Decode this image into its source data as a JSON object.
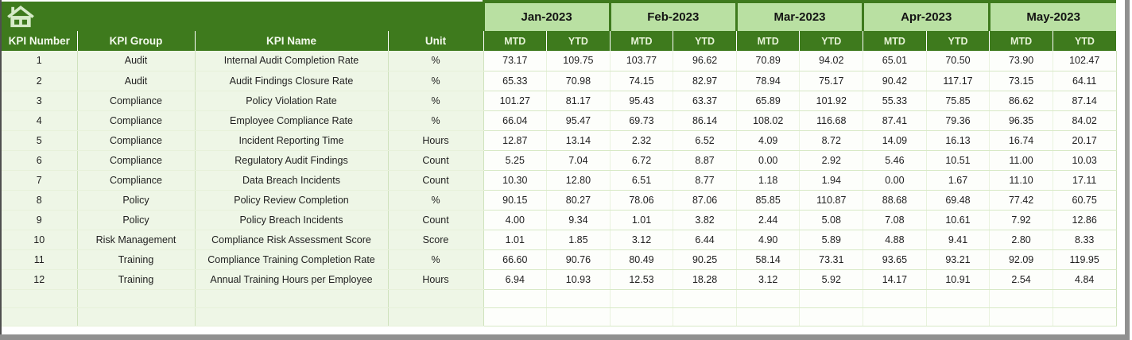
{
  "window": {
    "home_icon": "home-icon",
    "chrome_gray": "#909090",
    "edge_dark": "#4f4f4f"
  },
  "colors": {
    "header_green": "#3e7a1d",
    "month_band_green": "#b9e0a2",
    "left_cell_green": "#eef6e6",
    "grid_green": "#cfe2bd",
    "header_text": "#f4faee",
    "icon_fill": "#d6ebc8"
  },
  "table": {
    "column_headers": [
      "KPI Number",
      "KPI Group",
      "KPI Name",
      "Unit"
    ],
    "months": [
      "Jan-2023",
      "Feb-2023",
      "Mar-2023",
      "Apr-2023",
      "May-2023"
    ],
    "subheaders": {
      "mtd": "MTD",
      "ytd": "YTD"
    },
    "empty_row_count": 2,
    "rows": [
      {
        "number": "1",
        "group": "Audit",
        "name": "Internal Audit Completion Rate",
        "unit": "%",
        "values": [
          "73.17",
          "109.75",
          "103.77",
          "96.62",
          "70.89",
          "94.02",
          "65.01",
          "70.50",
          "73.90",
          "102.47"
        ]
      },
      {
        "number": "2",
        "group": "Audit",
        "name": "Audit Findings Closure Rate",
        "unit": "%",
        "values": [
          "65.33",
          "70.98",
          "74.15",
          "82.97",
          "78.94",
          "75.17",
          "90.42",
          "117.17",
          "73.15",
          "64.11"
        ]
      },
      {
        "number": "3",
        "group": "Compliance",
        "name": "Policy Violation Rate",
        "unit": "%",
        "values": [
          "101.27",
          "81.17",
          "95.43",
          "63.37",
          "65.89",
          "101.92",
          "55.33",
          "75.85",
          "86.62",
          "87.14"
        ]
      },
      {
        "number": "4",
        "group": "Compliance",
        "name": "Employee Compliance Rate",
        "unit": "%",
        "values": [
          "66.04",
          "95.47",
          "69.73",
          "86.14",
          "108.02",
          "116.68",
          "87.41",
          "79.36",
          "96.35",
          "84.02"
        ]
      },
      {
        "number": "5",
        "group": "Compliance",
        "name": "Incident Reporting Time",
        "unit": "Hours",
        "values": [
          "12.87",
          "13.14",
          "2.32",
          "6.52",
          "4.09",
          "8.72",
          "14.09",
          "16.13",
          "16.74",
          "20.17"
        ]
      },
      {
        "number": "6",
        "group": "Compliance",
        "name": "Regulatory Audit Findings",
        "unit": "Count",
        "values": [
          "5.25",
          "7.04",
          "6.72",
          "8.87",
          "0.00",
          "2.92",
          "5.46",
          "10.51",
          "11.00",
          "10.03"
        ]
      },
      {
        "number": "7",
        "group": "Compliance",
        "name": "Data Breach Incidents",
        "unit": "Count",
        "values": [
          "10.30",
          "12.80",
          "6.51",
          "8.77",
          "1.18",
          "1.94",
          "0.00",
          "1.67",
          "11.10",
          "17.11"
        ]
      },
      {
        "number": "8",
        "group": "Policy",
        "name": "Policy Review Completion",
        "unit": "%",
        "values": [
          "90.15",
          "80.27",
          "78.06",
          "87.06",
          "85.85",
          "110.87",
          "88.68",
          "69.48",
          "77.42",
          "60.75"
        ]
      },
      {
        "number": "9",
        "group": "Policy",
        "name": "Policy Breach Incidents",
        "unit": "Count",
        "values": [
          "4.00",
          "9.34",
          "1.01",
          "3.82",
          "2.44",
          "5.08",
          "7.08",
          "10.61",
          "7.92",
          "12.86"
        ]
      },
      {
        "number": "10",
        "group": "Risk Management",
        "name": "Compliance Risk Assessment Score",
        "unit": "Score",
        "values": [
          "1.01",
          "1.85",
          "3.12",
          "6.44",
          "4.90",
          "5.89",
          "4.88",
          "9.41",
          "2.80",
          "8.33"
        ]
      },
      {
        "number": "11",
        "group": "Training",
        "name": "Compliance Training Completion Rate",
        "unit": "%",
        "values": [
          "66.60",
          "90.76",
          "80.49",
          "90.25",
          "58.14",
          "73.31",
          "93.65",
          "93.21",
          "92.09",
          "119.95"
        ]
      },
      {
        "number": "12",
        "group": "Training",
        "name": "Annual Training Hours per Employee",
        "unit": "Hours",
        "values": [
          "6.94",
          "10.93",
          "12.53",
          "18.28",
          "3.12",
          "5.92",
          "14.17",
          "10.91",
          "2.54",
          "4.84"
        ]
      }
    ]
  }
}
